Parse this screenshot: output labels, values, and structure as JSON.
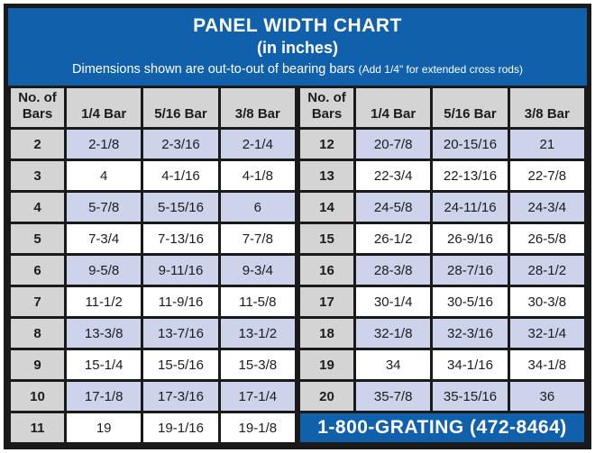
{
  "banner": {
    "title": "PANEL WIDTH CHART",
    "subtitle": "(in inches)",
    "note_main": "Dimensions shown are out-to-out of bearing bars",
    "note_paren": "(Add 1/4\" for extended cross rods)"
  },
  "columns": [
    "No. of Bars",
    "1/4 Bar",
    "5/16 Bar",
    "3/8 Bar"
  ],
  "left_table": {
    "rows": [
      [
        "2",
        "2-1/8",
        "2-3/16",
        "2-1/4"
      ],
      [
        "3",
        "4",
        "4-1/16",
        "4-1/8"
      ],
      [
        "4",
        "5-7/8",
        "5-15/16",
        "6"
      ],
      [
        "5",
        "7-3/4",
        "7-13/16",
        "7-7/8"
      ],
      [
        "6",
        "9-5/8",
        "9-11/16",
        "9-3/4"
      ],
      [
        "7",
        "11-1/2",
        "11-9/16",
        "11-5/8"
      ],
      [
        "8",
        "13-3/8",
        "13-7/16",
        "13-1/2"
      ],
      [
        "9",
        "15-1/4",
        "15-5/16",
        "15-3/8"
      ],
      [
        "10",
        "17-1/8",
        "17-3/16",
        "17-1/4"
      ],
      [
        "11",
        "19",
        "19-1/16",
        "19-1/8"
      ]
    ]
  },
  "right_table": {
    "rows": [
      [
        "12",
        "20-7/8",
        "20-15/16",
        "21"
      ],
      [
        "13",
        "22-3/4",
        "22-13/16",
        "22-7/8"
      ],
      [
        "14",
        "24-5/8",
        "24-11/16",
        "24-3/4"
      ],
      [
        "15",
        "26-1/2",
        "26-9/16",
        "26-5/8"
      ],
      [
        "16",
        "28-3/8",
        "28-7/16",
        "28-1/2"
      ],
      [
        "17",
        "30-1/4",
        "30-5/16",
        "30-3/8"
      ],
      [
        "18",
        "32-1/8",
        "32-3/16",
        "32-1/4"
      ],
      [
        "19",
        "34",
        "34-1/16",
        "34-1/8"
      ],
      [
        "20",
        "35-7/8",
        "35-15/16",
        "36"
      ]
    ]
  },
  "phone": {
    "label": "1-800-GRATING (472-8464)"
  },
  "colors": {
    "banner_blue": "#1160ab",
    "stripe_lavender": "#ccd3ea",
    "header_gray": "#d4d4d4",
    "border_black": "#1a1a1a"
  },
  "chart_data": {
    "type": "table",
    "title": "PANEL WIDTH CHART",
    "subtitle": "(in inches)",
    "note": "Dimensions shown are out-to-out of bearing bars (Add 1/4\" for extended cross rods)",
    "columns": [
      "No. of Bars",
      "1/4 Bar",
      "5/16 Bar",
      "3/8 Bar"
    ],
    "rows": [
      [
        "2",
        "2-1/8",
        "2-3/16",
        "2-1/4"
      ],
      [
        "3",
        "4",
        "4-1/16",
        "4-1/8"
      ],
      [
        "4",
        "5-7/8",
        "5-15/16",
        "6"
      ],
      [
        "5",
        "7-3/4",
        "7-13/16",
        "7-7/8"
      ],
      [
        "6",
        "9-5/8",
        "9-11/16",
        "9-3/4"
      ],
      [
        "7",
        "11-1/2",
        "11-9/16",
        "11-5/8"
      ],
      [
        "8",
        "13-3/8",
        "13-7/16",
        "13-1/2"
      ],
      [
        "9",
        "15-1/4",
        "15-5/16",
        "15-3/8"
      ],
      [
        "10",
        "17-1/8",
        "17-3/16",
        "17-1/4"
      ],
      [
        "11",
        "19",
        "19-1/16",
        "19-1/8"
      ],
      [
        "12",
        "20-7/8",
        "20-15/16",
        "21"
      ],
      [
        "13",
        "22-3/4",
        "22-13/16",
        "22-7/8"
      ],
      [
        "14",
        "24-5/8",
        "24-11/16",
        "24-3/4"
      ],
      [
        "15",
        "26-1/2",
        "26-9/16",
        "26-5/8"
      ],
      [
        "16",
        "28-3/8",
        "28-7/16",
        "28-1/2"
      ],
      [
        "17",
        "30-1/4",
        "30-5/16",
        "30-3/8"
      ],
      [
        "18",
        "32-1/8",
        "32-3/16",
        "32-1/4"
      ],
      [
        "19",
        "34",
        "34-1/16",
        "34-1/8"
      ],
      [
        "20",
        "35-7/8",
        "35-15/16",
        "36"
      ]
    ],
    "footer": "1-800-GRATING (472-8464)"
  }
}
